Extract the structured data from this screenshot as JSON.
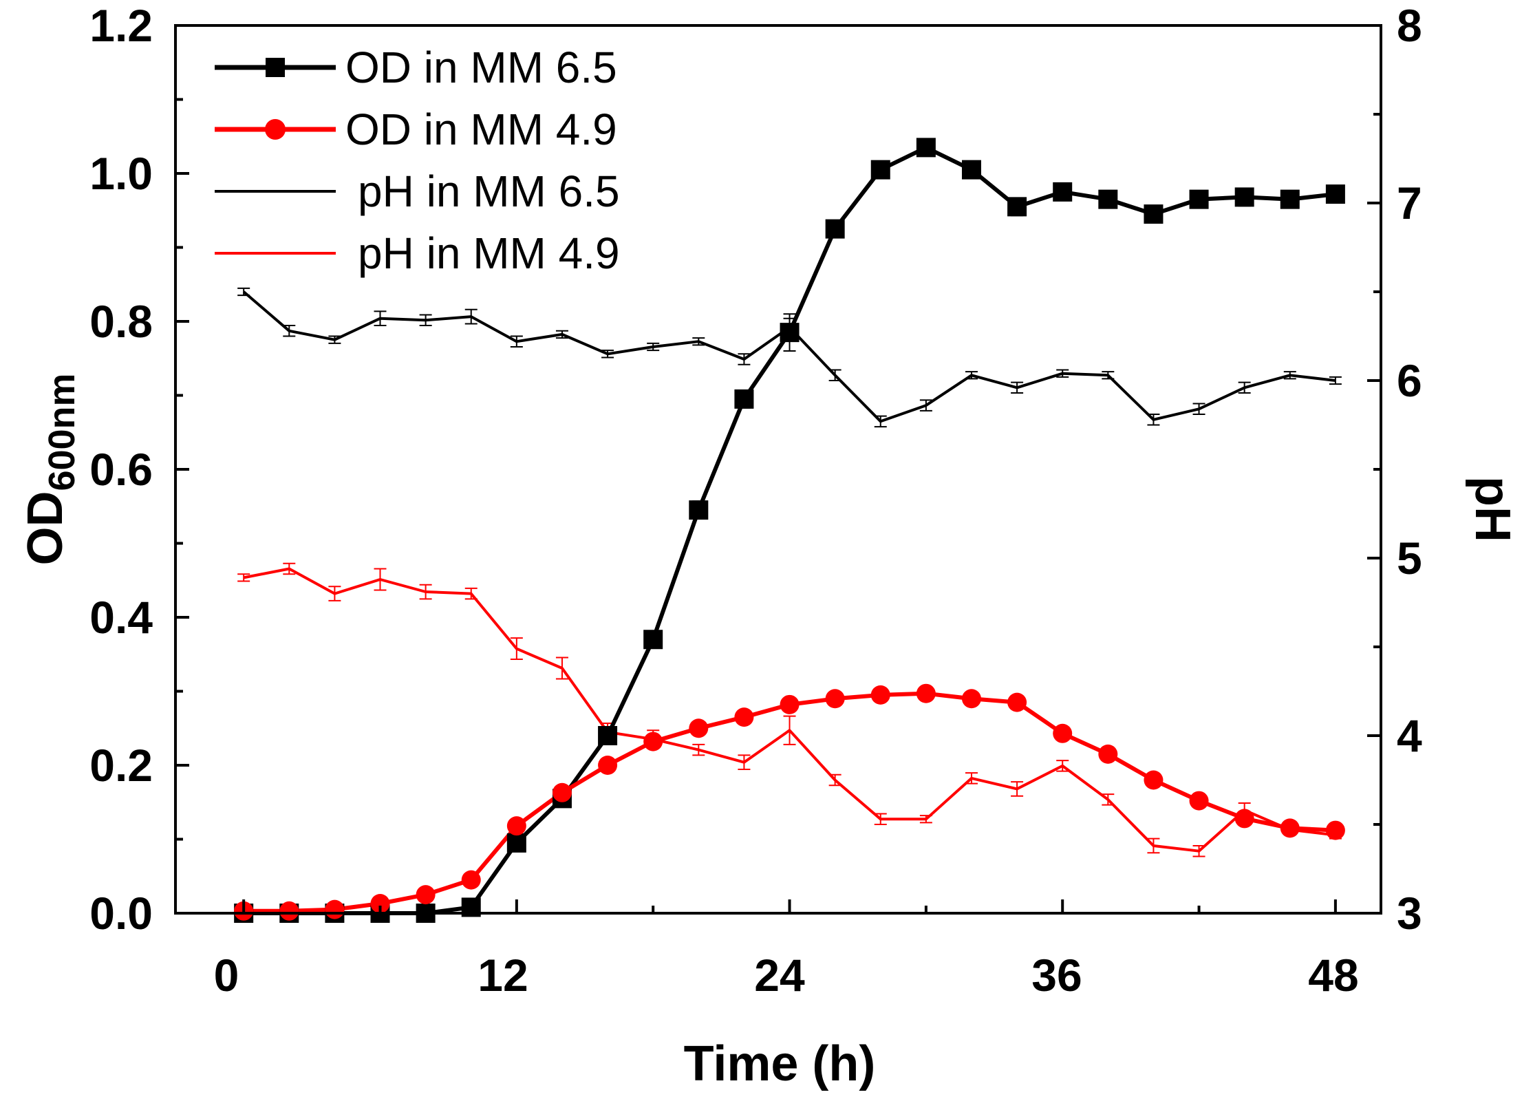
{
  "chart_data": {
    "type": "line",
    "x_label": "Time (h)",
    "y_label_main": "OD",
    "y_label_sub": "600nm",
    "y2_label": "pH",
    "x_range": [
      -3,
      50
    ],
    "x_ticks": [
      0,
      12,
      24,
      36,
      48
    ],
    "y_range": [
      0,
      1.2
    ],
    "y_ticks": [
      0.0,
      0.2,
      0.4,
      0.6,
      0.8,
      1.0,
      1.2
    ],
    "y_tick_labels": [
      "0.0",
      "0.2",
      "0.4",
      "0.6",
      "0.8",
      "1.0",
      "1.2"
    ],
    "y2_range": [
      3,
      8
    ],
    "y2_ticks": [
      3,
      4,
      5,
      6,
      7,
      8
    ],
    "y2_tick_labels": [
      "3",
      "4",
      "5",
      "6",
      "7",
      "8"
    ],
    "legend": [
      {
        "label": "OD in MM 6.5",
        "series": "od_65"
      },
      {
        "label": "OD in MM 4.9",
        "series": "od_49"
      },
      {
        "label": "pH in MM 6.5",
        "series": "ph_65"
      },
      {
        "label": "pH in MM 4.9",
        "series": "ph_49"
      }
    ],
    "x": [
      0,
      2,
      4,
      6,
      8,
      10,
      12,
      14,
      16,
      18,
      20,
      22,
      24,
      26,
      28,
      30,
      32,
      34,
      36,
      38,
      40,
      42,
      44,
      46,
      48
    ],
    "series": [
      {
        "id": "od_65",
        "name": "OD in MM 6.5",
        "axis": "left",
        "color": "#000000",
        "marker": "square",
        "values": [
          0.0,
          0.0,
          0.0,
          0.0,
          0.0,
          0.008,
          0.095,
          0.155,
          0.24,
          0.37,
          0.545,
          0.695,
          0.785,
          0.925,
          1.005,
          1.035,
          1.005,
          0.955,
          0.975,
          0.965,
          0.945,
          0.965,
          0.968,
          0.965,
          0.972
        ],
        "errors": [
          0.002,
          0.002,
          0.002,
          0.002,
          0.002,
          0.003,
          0.005,
          0.005,
          0.008,
          0.008,
          0.012,
          0.012,
          0.025,
          0.008,
          0.008,
          0.008,
          0.008,
          0.012,
          0.008,
          0.008,
          0.008,
          0.008,
          0.012,
          0.008,
          0.008
        ]
      },
      {
        "id": "od_49",
        "name": "OD in MM 4.9",
        "axis": "left",
        "color": "#ff0000",
        "marker": "circle",
        "values": [
          0.003,
          0.003,
          0.005,
          0.013,
          0.025,
          0.045,
          0.118,
          0.163,
          0.2,
          0.232,
          0.25,
          0.265,
          0.282,
          0.29,
          0.295,
          0.297,
          0.29,
          0.285,
          0.243,
          0.215,
          0.18,
          0.152,
          0.128,
          0.115,
          0.112
        ],
        "errors": [
          0.002,
          0.002,
          0.002,
          0.003,
          0.003,
          0.004,
          0.005,
          0.005,
          0.005,
          0.005,
          0.005,
          0.005,
          0.006,
          0.006,
          0.006,
          0.006,
          0.005,
          0.005,
          0.005,
          0.005,
          0.005,
          0.005,
          0.005,
          0.005,
          0.005
        ]
      },
      {
        "id": "ph_65",
        "name": "pH in MM 6.5",
        "axis": "right",
        "color": "#000000",
        "marker": "none",
        "values": [
          6.5,
          6.28,
          6.23,
          6.35,
          6.34,
          6.36,
          6.22,
          6.26,
          6.15,
          6.19,
          6.22,
          6.12,
          6.3,
          6.03,
          5.77,
          5.86,
          6.03,
          5.96,
          6.04,
          6.03,
          5.78,
          5.84,
          5.96,
          6.03,
          6.0
        ],
        "errors": [
          0.02,
          0.03,
          0.02,
          0.04,
          0.03,
          0.04,
          0.03,
          0.02,
          0.02,
          0.02,
          0.02,
          0.03,
          0.05,
          0.03,
          0.03,
          0.03,
          0.02,
          0.03,
          0.02,
          0.02,
          0.03,
          0.03,
          0.03,
          0.02,
          0.02
        ]
      },
      {
        "id": "ph_49",
        "name": "pH in MM 4.9",
        "axis": "right",
        "color": "#ff0000",
        "marker": "none",
        "values": [
          4.89,
          4.94,
          4.8,
          4.88,
          4.81,
          4.8,
          4.49,
          4.38,
          4.02,
          3.98,
          3.92,
          3.85,
          4.03,
          3.75,
          3.53,
          3.53,
          3.76,
          3.7,
          3.83,
          3.64,
          3.38,
          3.35,
          3.58,
          3.47,
          3.44
        ],
        "errors": [
          0.02,
          0.03,
          0.04,
          0.06,
          0.04,
          0.03,
          0.06,
          0.06,
          0.05,
          0.05,
          0.03,
          0.04,
          0.08,
          0.03,
          0.03,
          0.02,
          0.03,
          0.04,
          0.03,
          0.03,
          0.04,
          0.03,
          0.04,
          0.02,
          0.02
        ]
      }
    ]
  }
}
